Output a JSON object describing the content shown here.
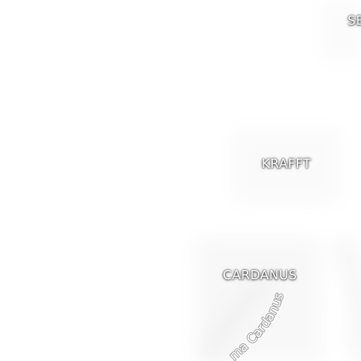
{
  "map": {
    "labels": {
      "se_partial": "SE",
      "krafft": "KRAFFT",
      "cardanus": "CARDANUS",
      "rima_cardanus_partial": "ma Cardanus"
    },
    "colors": {
      "background": "#ffffff",
      "label_text": "#ffffff",
      "label_shadow": "#000000",
      "terrain_tint": "#f6f6f6"
    }
  }
}
